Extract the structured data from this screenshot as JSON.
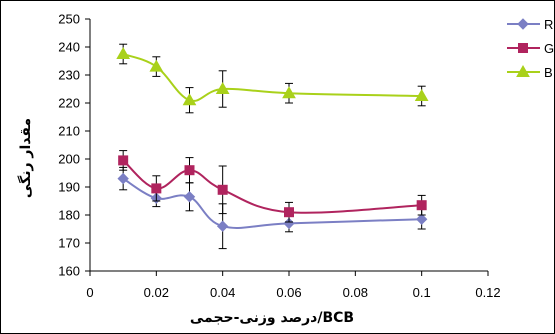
{
  "chart_data": {
    "type": "line",
    "xlabel": "درصد وزنی-حجمی/BCB",
    "ylabel": "مقدار رنگی",
    "xlim": [
      0,
      0.12
    ],
    "ylim": [
      160,
      250
    ],
    "x_ticks": [
      "0",
      "0.02",
      "0.04",
      "0.06",
      "0.08",
      "0.1",
      "0.12"
    ],
    "y_ticks": [
      "160",
      "170",
      "180",
      "190",
      "200",
      "210",
      "220",
      "230",
      "240",
      "250"
    ],
    "x_tick_values": [
      0,
      0.02,
      0.04,
      0.06,
      0.08,
      0.1,
      0.12
    ],
    "y_tick_values": [
      160,
      170,
      180,
      190,
      200,
      210,
      220,
      230,
      240,
      250
    ],
    "grid": false,
    "legend_position": "top-right",
    "series": [
      {
        "name": "R",
        "color": "#7b7fc4",
        "marker": "diamond",
        "x": [
          0.01,
          0.02,
          0.03,
          0.04,
          0.06,
          0.1
        ],
        "values": [
          193,
          186,
          186.5,
          176,
          177,
          178.5
        ],
        "errors": [
          4,
          3,
          5,
          8,
          3,
          3.5
        ]
      },
      {
        "name": "G",
        "color": "#b0245e",
        "marker": "square",
        "x": [
          0.01,
          0.02,
          0.03,
          0.04,
          0.06,
          0.1
        ],
        "values": [
          199.5,
          189.5,
          196,
          189,
          181,
          183.5
        ],
        "errors": [
          3.5,
          4.5,
          4.5,
          8.5,
          3.5,
          3.5
        ]
      },
      {
        "name": "B",
        "color": "#a9d11a",
        "marker": "triangle",
        "x": [
          0.01,
          0.02,
          0.03,
          0.04,
          0.06,
          0.1
        ],
        "values": [
          237.5,
          233,
          221,
          225,
          223.5,
          222.5
        ],
        "errors": [
          3.5,
          3.5,
          4.5,
          6.5,
          3.5,
          3.5
        ]
      }
    ]
  }
}
